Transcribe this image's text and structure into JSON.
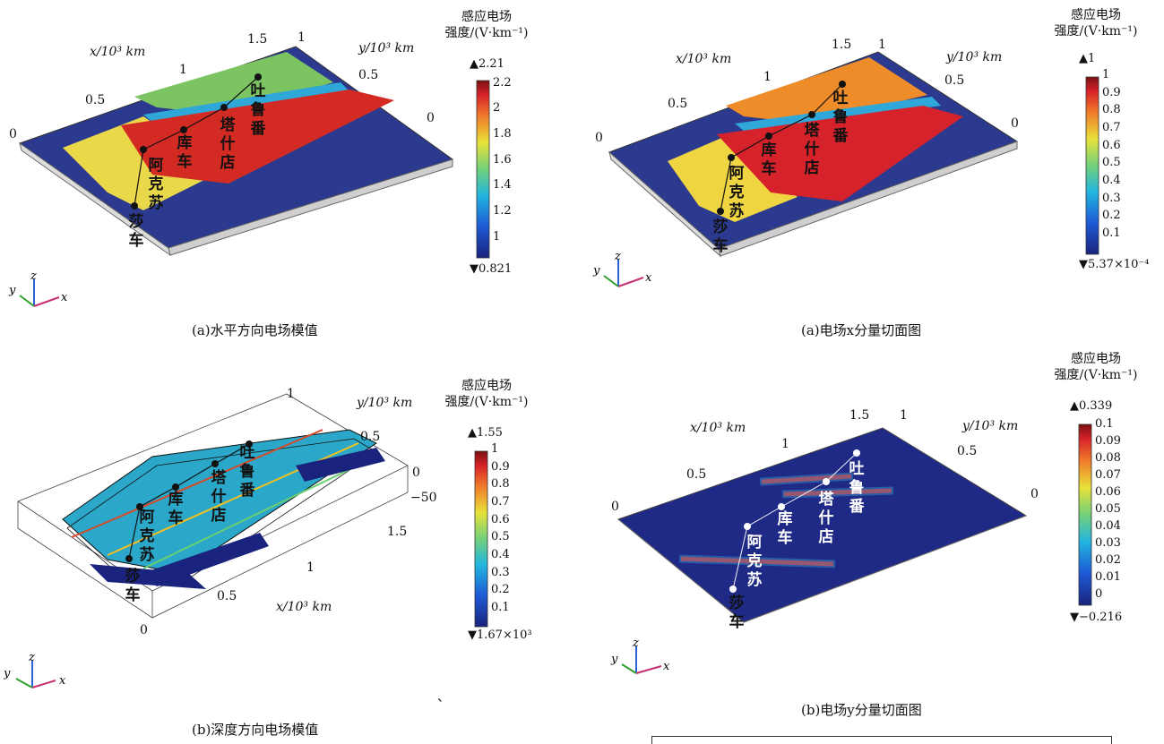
{
  "panels": [
    {
      "caption": "(a)水平方向电场模值",
      "cb_title_line1": "感应电场",
      "cb_title_line2": "强度/(V·km⁻¹)",
      "cb_max": "▲2.21",
      "cb_min": "▼0.821",
      "cb_ticks": [
        "2.2",
        "2",
        "1.8",
        "1.6",
        "1.4",
        "1.2",
        "1"
      ],
      "x_axis_label": "x/10³ km",
      "y_axis_label": "y/10³ km",
      "x_ticks": [
        "0",
        "0.5",
        "1",
        "1.5"
      ],
      "y_ticks": [
        "1",
        "0.5",
        "0"
      ],
      "cities": [
        "吐鲁番",
        "塔什店",
        "库车",
        "阿克苏",
        "莎车"
      ]
    },
    {
      "caption": "(a)电场x分量切面图",
      "cb_title_line1": "感应电场",
      "cb_title_line2": "强度/(V·km⁻¹)",
      "cb_max": "▲1",
      "cb_min": "▼5.37×10⁻⁴",
      "cb_ticks": [
        "1",
        "0.9",
        "0.8",
        "0.7",
        "0.6",
        "0.5",
        "0.4",
        "0.3",
        "0.2",
        "0.1"
      ],
      "x_axis_label": "x/10³ km",
      "y_axis_label": "y/10³ km",
      "x_ticks": [
        "0",
        "0.5",
        "1",
        "1.5"
      ],
      "y_ticks": [
        "1",
        "0.5",
        "0"
      ],
      "cities": [
        "吐鲁番",
        "塔什店",
        "库车",
        "阿克苏",
        "莎车"
      ]
    },
    {
      "caption": "(b)深度方向电场模值",
      "cb_title_line1": "感应电场",
      "cb_title_line2": "强度/(V·km⁻¹)",
      "cb_max": "▲1.55",
      "cb_min": "▼1.67×10³",
      "cb_ticks": [
        "1",
        "0.9",
        "0.8",
        "0.7",
        "0.6",
        "0.5",
        "0.4",
        "0.3",
        "0.2",
        "0.1"
      ],
      "x_axis_label": "x/10³ km",
      "y_axis_label": "y/10³ km",
      "x_ticks": [
        "0",
        "0.5",
        "1",
        "1.5"
      ],
      "y_ticks": [
        "1",
        "0.5",
        "0",
        "−50"
      ],
      "cities": [
        "吐鲁番",
        "塔什店",
        "库车",
        "阿克苏",
        "莎车"
      ]
    },
    {
      "caption": "(b)电场y分量切面图",
      "cb_title_line1": "感应电场",
      "cb_title_line2": "强度/(V·km⁻¹)",
      "cb_max": "▲0.339",
      "cb_min": "▼−0.216",
      "cb_ticks": [
        "0.1",
        "0.09",
        "0.08",
        "0.07",
        "0.06",
        "0.05",
        "0.04",
        "0.03",
        "0.02",
        "0.01",
        "0"
      ],
      "x_axis_label": "x/10³ km",
      "y_axis_label": "y/10³ km",
      "x_ticks": [
        "0",
        "0.5",
        "1",
        "1.5"
      ],
      "y_ticks": [
        "1",
        "0.5",
        "0"
      ],
      "cities": [
        "吐鲁番",
        "塔什店",
        "库车",
        "阿克苏",
        "莎车"
      ]
    }
  ],
  "triad": {
    "x": "x",
    "y": "y",
    "z": "z"
  },
  "stray_mark": "、",
  "chart_data": [
    {
      "type": "heatmap",
      "title": "(a)水平方向电场模值",
      "colorbar_label": "感应电场强度/(V·km⁻¹)",
      "range": [
        0.821,
        2.21
      ],
      "xlabel": "x/10³ km",
      "ylabel": "y/10³ km",
      "xlim": [
        0,
        1.5
      ],
      "ylim": [
        0,
        1
      ],
      "stations": [
        "莎车",
        "阿克苏",
        "库车",
        "塔什店",
        "吐鲁番"
      ],
      "colors": [
        "#1a237e",
        "#2196f3",
        "#6cd06c",
        "#f7e23a",
        "#d62728",
        "#7a1010"
      ]
    },
    {
      "type": "heatmap",
      "title": "(a)电场x分量切面图",
      "colorbar_label": "感应电场强度/(V·km⁻¹)",
      "range": [
        0.000537,
        1
      ],
      "xlabel": "x/10³ km",
      "ylabel": "y/10³ km",
      "xlim": [
        0,
        1.5
      ],
      "ylim": [
        0,
        1
      ],
      "stations": [
        "莎车",
        "阿克苏",
        "库车",
        "塔什店",
        "吐鲁番"
      ]
    },
    {
      "type": "heatmap",
      "title": "(b)深度方向电场模值",
      "colorbar_label": "感应电场强度/(V·km⁻¹)",
      "range": [
        1670,
        1.55
      ],
      "xlabel": "x/10³ km",
      "ylabel": "y/10³ km",
      "xlim": [
        0,
        1.5
      ],
      "ylim": [
        0,
        1
      ],
      "zlim": [
        -50,
        0
      ],
      "stations": [
        "莎车",
        "阿克苏",
        "库车",
        "塔什店",
        "吐鲁番"
      ]
    },
    {
      "type": "heatmap",
      "title": "(b)电场y分量切面图",
      "colorbar_label": "感应电场强度/(V·km⁻¹)",
      "range": [
        -0.216,
        0.339
      ],
      "xlabel": "x/10³ km",
      "ylabel": "y/10³ km",
      "xlim": [
        0,
        1.5
      ],
      "ylim": [
        0,
        1
      ],
      "stations": [
        "莎车",
        "阿克苏",
        "库车",
        "塔什店",
        "吐鲁番"
      ]
    }
  ]
}
